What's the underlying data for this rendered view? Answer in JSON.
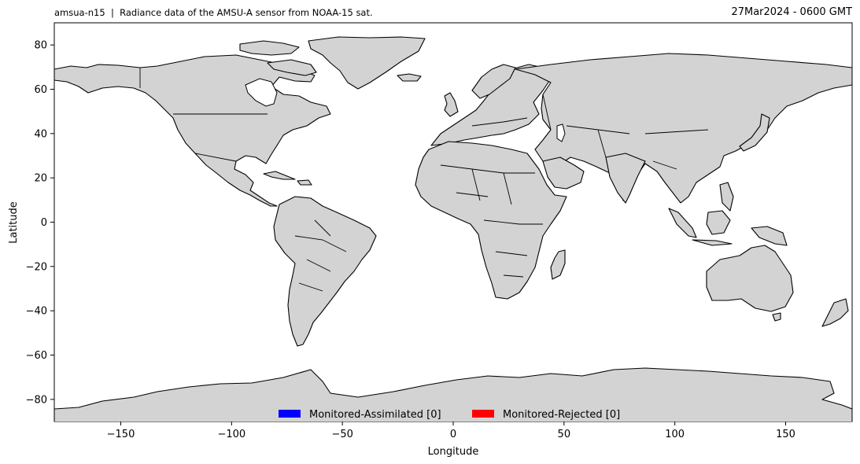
{
  "header": {
    "title_left": "amsua-n15  |  Radiance data of the AMSU-A sensor from NOAA-15 sat.",
    "title_right": "27Mar2024 - 0600 GMT"
  },
  "chart_data": {
    "type": "scatter",
    "title": "amsua-n15  |  Radiance data of the AMSU-A sensor from NOAA-15 sat.",
    "xlabel": "Longitude",
    "ylabel": "Latitude",
    "xlim": [
      -180,
      180
    ],
    "ylim": [
      -90,
      90
    ],
    "xticks": [
      -150,
      -100,
      -50,
      0,
      50,
      100,
      150
    ],
    "yticks": [
      80,
      60,
      40,
      20,
      0,
      -20,
      -40,
      -60,
      -80
    ],
    "grid": false,
    "legend_position": "bottom-center",
    "basemap": "world coastlines and country borders",
    "land_color": "#d3d3d3",
    "series": [
      {
        "name": "Monitored-Assimilated [0]",
        "color": "#0000ff",
        "points": []
      },
      {
        "name": "Monitored-Rejected [0]",
        "color": "#ff0000",
        "points": []
      }
    ]
  }
}
